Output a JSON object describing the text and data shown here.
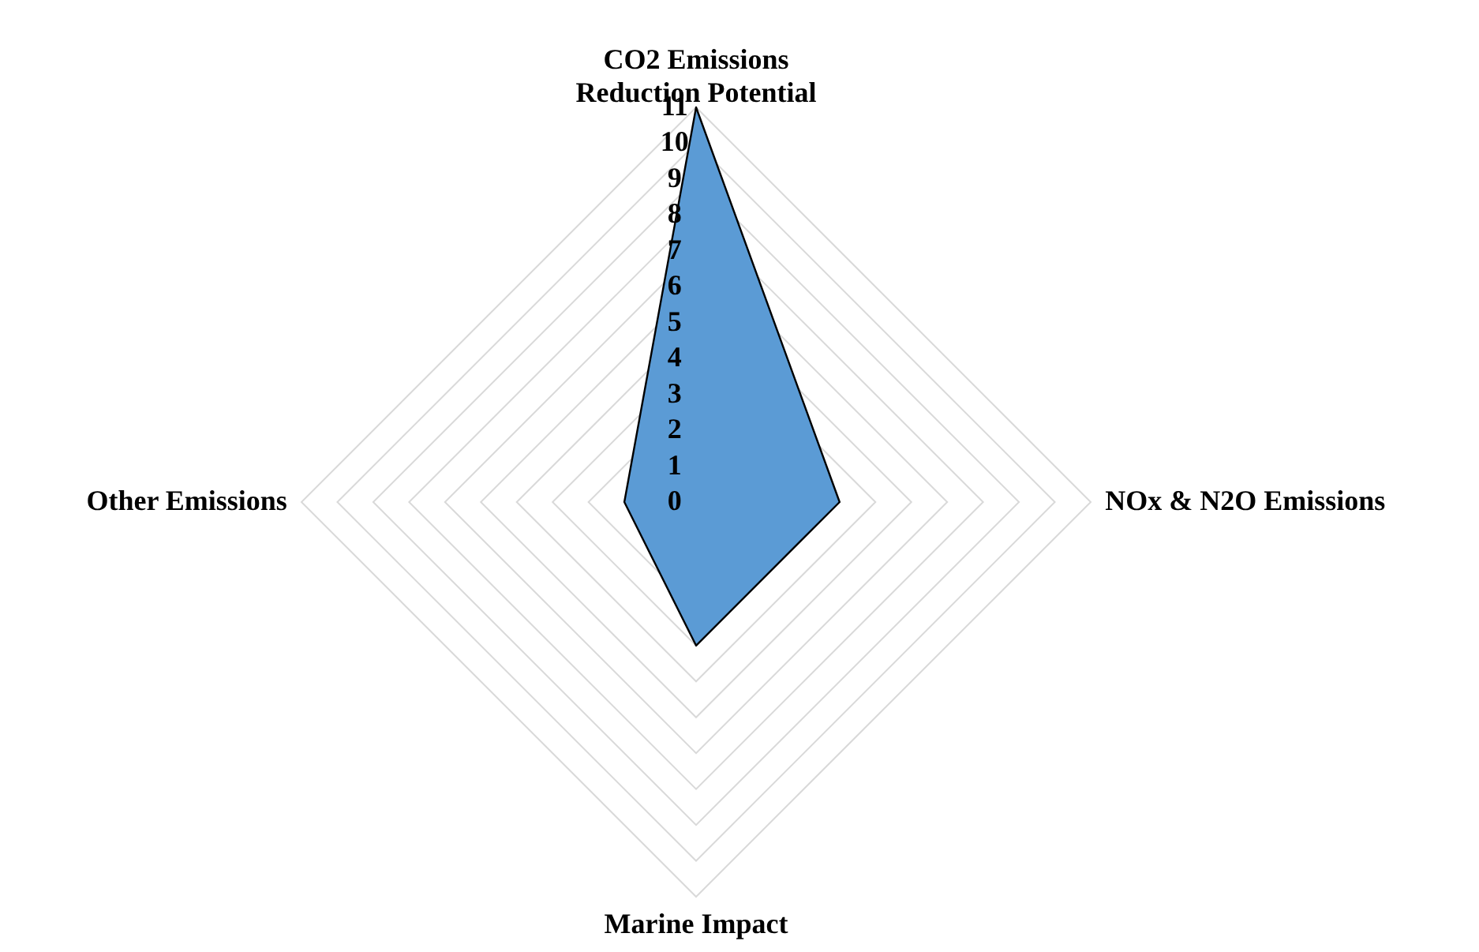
{
  "chart_data": {
    "type": "radar",
    "categories": [
      "CO2 Emissions\nReduction Potential",
      "NOx & N2O Emissions",
      "Marine Impact",
      "Other Emissions"
    ],
    "series": [
      {
        "color": "#5b9bd5",
        "values": [
          11,
          4,
          4,
          2
        ]
      }
    ],
    "ylim": [
      0,
      11
    ],
    "yticks": [
      0,
      1,
      2,
      3,
      4,
      5,
      6,
      7,
      8,
      9,
      10,
      11
    ],
    "grid": true
  }
}
